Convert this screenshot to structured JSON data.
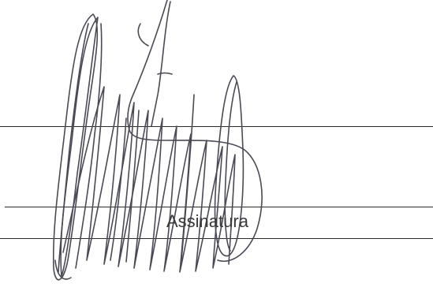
{
  "form": {
    "signature_caption": "Assinatura"
  },
  "colors": {
    "ink": "#4a4a55",
    "rule": "#2b2b2b",
    "paper": "#ffffff"
  }
}
